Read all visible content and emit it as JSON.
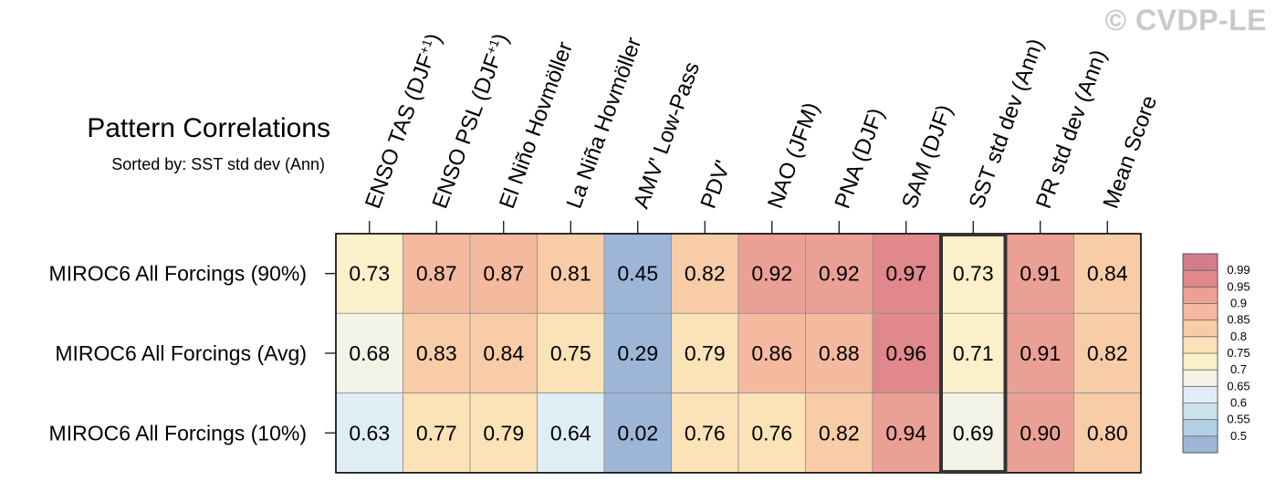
{
  "watermark": "© CVDP-LE",
  "title": "Pattern Correlations",
  "subtitle": "Sorted by: SST std dev (Ann)",
  "chart_data": {
    "type": "heatmap",
    "columns": [
      {
        "plain": "ENSO TAS (DJF",
        "sup": "+1",
        "close": ")"
      },
      {
        "plain": "ENSO PSL (DJF",
        "sup": "+1",
        "close": ")"
      },
      {
        "plain": "El Niño Hovmöller"
      },
      {
        "plain": "La Niña Hovmöller"
      },
      {
        "plain": "AMV' Low-Pass"
      },
      {
        "plain": "PDV'"
      },
      {
        "plain": "NAO (JFM)"
      },
      {
        "plain": "PNA (DJF)"
      },
      {
        "plain": "SAM (DJF)"
      },
      {
        "plain": "SST std dev (Ann)"
      },
      {
        "plain": "PR std dev (Ann)"
      },
      {
        "plain": "Mean Score"
      }
    ],
    "rows": [
      "MIROC6 All Forcings (90%)",
      "MIROC6 All Forcings (Avg)",
      "MIROC6 All Forcings (10%)"
    ],
    "values": [
      [
        0.73,
        0.87,
        0.87,
        0.81,
        0.45,
        0.82,
        0.92,
        0.92,
        0.97,
        0.73,
        0.91,
        0.84
      ],
      [
        0.68,
        0.83,
        0.84,
        0.75,
        0.29,
        0.79,
        0.86,
        0.88,
        0.96,
        0.71,
        0.91,
        0.82
      ],
      [
        0.63,
        0.77,
        0.79,
        0.64,
        0.02,
        0.76,
        0.76,
        0.82,
        0.94,
        0.69,
        0.9,
        0.8
      ]
    ],
    "highlighted_column": "SST std dev (Ann)",
    "colorbar": {
      "labels": [
        "0.99",
        "0.95",
        "0.9",
        "0.85",
        "0.8",
        "0.75",
        "0.7",
        "0.65",
        "0.6",
        "0.55",
        "0.5"
      ],
      "colors": [
        "#d27d8b",
        "#e0888c",
        "#eba096",
        "#f4b99f",
        "#f8cca7",
        "#fbe2b7",
        "#fcf0cb",
        "#f3f3e8",
        "#dfeef4",
        "#cbe3ef",
        "#b4d0e6",
        "#9db6d8"
      ]
    }
  }
}
